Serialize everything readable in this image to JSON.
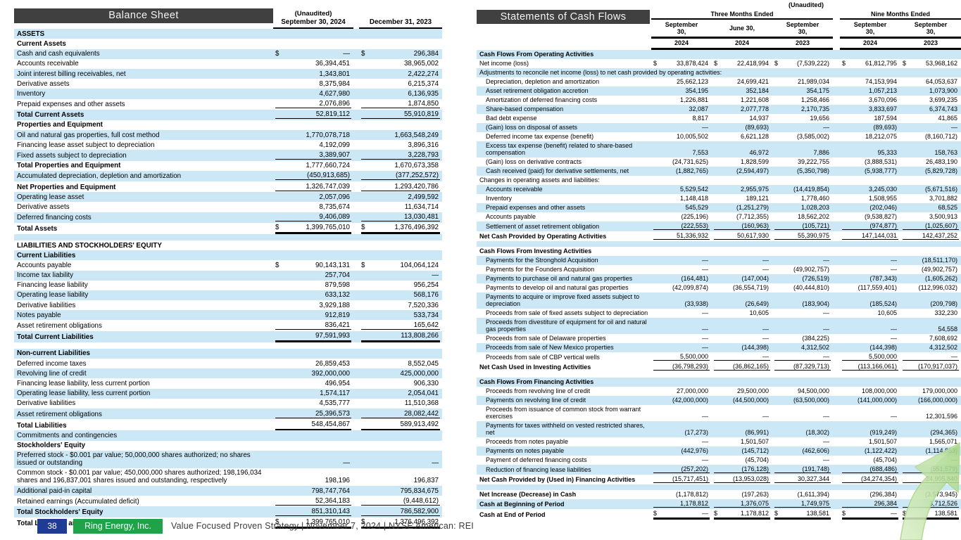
{
  "currency": "$",
  "colors": {
    "stripe": "#cce7f6",
    "header_bar": "#404040",
    "footer_page_bg": "#1e3c96",
    "footer_brand_bg": "#1fa349",
    "arrow_green_light": "#dcefca",
    "arrow_green_dark": "#a6d685"
  },
  "footer": {
    "page": "38",
    "company": "Ring Energy, Inc.",
    "tagline": "Value Focused Proven Strategy  | November 7, 2024 |  NYSE American: REI"
  },
  "balance_sheet": {
    "title": "Balance Sheet",
    "unaudited": "(Unaudited)",
    "col_headers": [
      "September 30, 2024",
      "December 31, 2023"
    ],
    "rows": [
      {
        "label": "ASSETS",
        "bold": 1,
        "stripe": 1
      },
      {
        "label": "Current Assets",
        "bold": 1
      },
      {
        "label": "Cash and cash equivalents",
        "values": [
          "—",
          "296,384"
        ],
        "dollar": 1,
        "stripe": 1
      },
      {
        "label": "Accounts receivable",
        "values": [
          "36,394,451",
          "38,965,002"
        ]
      },
      {
        "label": "Joint interest billing receivables, net",
        "values": [
          "1,343,801",
          "2,422,274"
        ],
        "stripe": 1
      },
      {
        "label": "Derivative assets",
        "values": [
          "8,375,984",
          "6,215,374"
        ]
      },
      {
        "label": "Inventory",
        "values": [
          "4,627,980",
          "6,136,935"
        ],
        "stripe": 1
      },
      {
        "label": "Prepaid expenses and other assets",
        "values": [
          "2,076,896",
          "1,874,850"
        ],
        "underline": "s"
      },
      {
        "label": "Total Current Assets",
        "values": [
          "52,819,112",
          "55,910,819"
        ],
        "bold": 1,
        "stripe": 1,
        "underline": "s"
      },
      {
        "label": "Properties and Equipment",
        "bold": 1
      },
      {
        "label": "Oil and natural gas properties, full cost method",
        "values": [
          "1,770,078,718",
          "1,663,548,249"
        ],
        "stripe": 1
      },
      {
        "label": "Financing lease asset subject to depreciation",
        "values": [
          "4,192,099",
          "3,896,316"
        ]
      },
      {
        "label": "Fixed assets subject to depreciation",
        "values": [
          "3,389,907",
          "3,228,793"
        ],
        "stripe": 1,
        "underline": "s"
      },
      {
        "label": "Total Properties and Equipment",
        "values": [
          "1,777,660,724",
          "1,670,673,358"
        ],
        "bold": 1
      },
      {
        "label": "Accumulated depreciation, depletion and amortization",
        "values": [
          "(450,913,685)",
          "(377,252,572)"
        ],
        "stripe": 1,
        "underline": "s"
      },
      {
        "label": "Net Properties and Equipment",
        "values": [
          "1,326,747,039",
          "1,293,420,786"
        ],
        "bold": 1,
        "underline": "s"
      },
      {
        "label": "Operating lease asset",
        "values": [
          "2,057,096",
          "2,499,592"
        ],
        "stripe": 1
      },
      {
        "label": "Derivative assets",
        "values": [
          "8,735,674",
          "11,634,714"
        ]
      },
      {
        "label": "Deferred financing costs",
        "values": [
          "9,406,089",
          "13,030,481"
        ],
        "stripe": 1,
        "underline": "s"
      },
      {
        "label": "Total Assets",
        "values": [
          "1,399,765,010",
          "1,376,496,392"
        ],
        "bold": 1,
        "dollar": 1,
        "underline": "d"
      },
      {
        "blank": 1,
        "stripe": 1
      },
      {
        "label": "LIABILITIES AND STOCKHOLDERS' EQUITY",
        "bold": 1
      },
      {
        "label": "Current Liabilities",
        "bold": 1,
        "stripe": 1
      },
      {
        "label": "Accounts payable",
        "values": [
          "90,143,131",
          "104,064,124"
        ],
        "dollar": 1
      },
      {
        "label": "Income tax liability",
        "values": [
          "257,704",
          "—"
        ],
        "stripe": 1
      },
      {
        "label": "Financing lease liability",
        "values": [
          "879,598",
          "956,254"
        ]
      },
      {
        "label": "Operating lease liability",
        "values": [
          "633,132",
          "568,176"
        ],
        "stripe": 1
      },
      {
        "label": "Derivative liabilities",
        "values": [
          "3,929,188",
          "7,520,336"
        ]
      },
      {
        "label": "Notes payable",
        "values": [
          "912,819",
          "533,734"
        ],
        "stripe": 1
      },
      {
        "label": "Asset retirement obligations",
        "values": [
          "836,421",
          "165,642"
        ],
        "underline": "s"
      },
      {
        "label": "Total Current Liabilities",
        "values": [
          "97,591,993",
          "113,808,266"
        ],
        "bold": 1,
        "stripe": 1,
        "underline": "d"
      },
      {
        "blank": 1
      },
      {
        "label": "Non-current Liabilities",
        "bold": 1,
        "stripe": 1
      },
      {
        "label": "Deferred income taxes",
        "values": [
          "26,859,453",
          "8,552,045"
        ]
      },
      {
        "label": "Revolving line of credit",
        "values": [
          "392,000,000",
          "425,000,000"
        ],
        "stripe": 1
      },
      {
        "label": "Financing lease liability, less current portion",
        "values": [
          "496,954",
          "906,330"
        ]
      },
      {
        "label": "Operating lease liability, less current portion",
        "values": [
          "1,574,117",
          "2,054,041"
        ],
        "stripe": 1
      },
      {
        "label": "Derivative liabilities",
        "values": [
          "4,535,777",
          "11,510,368"
        ]
      },
      {
        "label": "Asset retirement obligations",
        "values": [
          "25,396,573",
          "28,082,442"
        ],
        "stripe": 1,
        "underline": "s"
      },
      {
        "label": "Total Liabilities",
        "values": [
          "548,454,867",
          "589,913,492"
        ],
        "bold": 1,
        "underline": "d"
      },
      {
        "label": "Commitments and contingencies",
        "stripe": 1
      },
      {
        "label": "Stockholders' Equity",
        "bold": 1
      },
      {
        "label": "Preferred stock - $0.001 par value; 50,000,000 shares authorized; no shares issued or outstanding",
        "values": [
          "—",
          "—"
        ],
        "stripe": 1
      },
      {
        "label": "Common stock - $0.001 par value; 450,000,000 shares authorized; 198,196,034 shares and 196,837,001 shares issued and outstanding, respectively",
        "values": [
          "198,196",
          "196,837"
        ]
      },
      {
        "label": "Additional paid-in capital",
        "values": [
          "798,747,764",
          "795,834,675"
        ],
        "stripe": 1
      },
      {
        "label": "Retained earnings (Accumulated deficit)",
        "values": [
          "52,364,183",
          "(9,448,612)"
        ],
        "underline": "s"
      },
      {
        "label": "Total Stockholders' Equity",
        "values": [
          "851,310,143",
          "786,582,900"
        ],
        "bold": 1,
        "stripe": 1,
        "underline": "s"
      },
      {
        "label": "Total Liabilities and Stockholders' Equity",
        "values": [
          "1,399,765,010",
          "1,376,496,392"
        ],
        "bold": 1,
        "dollar": 1,
        "underline": "d"
      }
    ]
  },
  "cash_flows": {
    "title": "Statements of Cash Flows",
    "unaudited": "(Unaudited)",
    "group_headers": [
      "Three Months Ended",
      "Nine Months Ended"
    ],
    "col_dates": [
      [
        "September",
        "30,"
      ],
      [
        "June 30,"
      ],
      [
        "September",
        "30,"
      ],
      [
        "September",
        "30,"
      ],
      [
        "September",
        "30,"
      ]
    ],
    "col_years": [
      "2024",
      "2024",
      "2023",
      "2024",
      "2023"
    ],
    "rows": [
      {
        "label": "Cash Flows From Operating Activities",
        "bold": 1,
        "stripe": 1
      },
      {
        "label": "Net income (loss)",
        "values": [
          "33,878,424",
          "22,418,994",
          "(7,539,222)",
          "61,812,795",
          "53,968,162"
        ],
        "dollar": 1
      },
      {
        "label": "Adjustments to reconcile net income (loss) to net cash provided by operating activities:",
        "stripe": 1
      },
      {
        "label": "Depreciation, depletion and amortization",
        "indent": 1,
        "values": [
          "25,662,123",
          "24,699,421",
          "21,989,034",
          "74,153,994",
          "64,053,637"
        ]
      },
      {
        "label": "Asset retirement obligation accretion",
        "indent": 1,
        "values": [
          "354,195",
          "352,184",
          "354,175",
          "1,057,213",
          "1,073,900"
        ],
        "stripe": 1
      },
      {
        "label": "Amortization of deferred financing costs",
        "indent": 1,
        "values": [
          "1,226,881",
          "1,221,608",
          "1,258,466",
          "3,670,096",
          "3,699,235"
        ]
      },
      {
        "label": "Share-based compensation",
        "indent": 1,
        "values": [
          "32,087",
          "2,077,778",
          "2,170,735",
          "3,833,697",
          "6,374,743"
        ],
        "stripe": 1
      },
      {
        "label": "Bad debt expense",
        "indent": 1,
        "values": [
          "8,817",
          "14,937",
          "19,656",
          "187,594",
          "41,865"
        ]
      },
      {
        "label": "(Gain) loss on disposal of assets",
        "indent": 1,
        "values": [
          "—",
          "(89,693)",
          "—",
          "(89,693)",
          "—"
        ],
        "stripe": 1
      },
      {
        "label": "Deferred income tax expense (benefit)",
        "indent": 1,
        "values": [
          "10,005,502",
          "6,621,128",
          "(3,585,002)",
          "18,212,075",
          "(8,160,712)"
        ]
      },
      {
        "label": "Excess tax expense (benefit) related to share-based compensation",
        "indent": 1,
        "values": [
          "7,553",
          "46,972",
          "7,886",
          "95,333",
          "158,763"
        ],
        "stripe": 1
      },
      {
        "label": "(Gain) loss on derivative contracts",
        "indent": 1,
        "values": [
          "(24,731,625)",
          "1,828,599",
          "39,222,755",
          "(3,888,531)",
          "26,483,190"
        ]
      },
      {
        "label": "Cash received (paid) for derivative settlements, net",
        "indent": 1,
        "values": [
          "(1,882,765)",
          "(2,594,497)",
          "(5,350,798)",
          "(5,938,777)",
          "(5,829,728)"
        ],
        "stripe": 1
      },
      {
        "label": "Changes in operating assets and liabilities:"
      },
      {
        "label": "Accounts receivable",
        "indent": 1,
        "values": [
          "5,529,542",
          "2,955,975",
          "(14,419,854)",
          "3,245,030",
          "(5,671,516)"
        ],
        "stripe": 1
      },
      {
        "label": "Inventory",
        "indent": 1,
        "values": [
          "1,148,418",
          "189,121",
          "1,778,460",
          "1,508,955",
          "3,701,882"
        ]
      },
      {
        "label": "Prepaid expenses and other assets",
        "indent": 1,
        "values": [
          "545,529",
          "(1,251,279)",
          "1,028,203",
          "(202,046)",
          "68,525"
        ],
        "stripe": 1
      },
      {
        "label": "Accounts payable",
        "indent": 1,
        "values": [
          "(225,196)",
          "(7,712,355)",
          "18,562,202",
          "(9,538,827)",
          "3,500,913"
        ]
      },
      {
        "label": "Settlement of asset retirement obligation",
        "indent": 1,
        "values": [
          "(222,553)",
          "(160,963)",
          "(105,721)",
          "(974,877)",
          "(1,025,607)"
        ],
        "stripe": 1,
        "underline": "s"
      },
      {
        "label": "Net Cash Provided by Operating Activities",
        "bold": 1,
        "values": [
          "51,336,932",
          "50,617,930",
          "55,390,975",
          "147,144,031",
          "142,437,252"
        ],
        "underline": "s"
      },
      {
        "blank": 1,
        "stripe": 1
      },
      {
        "label": "Cash Flows From Investing Activities",
        "bold": 1
      },
      {
        "label": "Payments for the Stronghold Acquisition",
        "indent": 1,
        "values": [
          "—",
          "—",
          "—",
          "—",
          "(18,511,170)"
        ],
        "stripe": 1
      },
      {
        "label": "Payments for the Founders Acquisition",
        "indent": 1,
        "values": [
          "—",
          "—",
          "(49,902,757)",
          "—",
          "(49,902,757)"
        ]
      },
      {
        "label": "Payments to purchase oil and natural gas properties",
        "indent": 1,
        "values": [
          "(164,481)",
          "(147,004)",
          "(726,519)",
          "(787,343)",
          "(1,605,262)"
        ],
        "stripe": 1
      },
      {
        "label": "Payments to develop oil and natural gas properties",
        "indent": 1,
        "values": [
          "(42,099,874)",
          "(36,554,719)",
          "(40,444,810)",
          "(117,559,401)",
          "(112,996,032)"
        ]
      },
      {
        "label": "Payments to acquire or improve fixed assets subject to depreciation",
        "indent": 1,
        "values": [
          "(33,938)",
          "(26,649)",
          "(183,904)",
          "(185,524)",
          "(209,798)"
        ],
        "stripe": 1
      },
      {
        "label": "Proceeds from sale of fixed assets subject to depreciation",
        "indent": 1,
        "values": [
          "—",
          "10,605",
          "—",
          "10,605",
          "332,230"
        ]
      },
      {
        "label": "Proceeds from divestiture of equipment for oil and natural gas properties",
        "indent": 1,
        "values": [
          "—",
          "—",
          "—",
          "—",
          "54,558"
        ],
        "stripe": 1
      },
      {
        "label": "Proceeds from sale of Delaware properties",
        "indent": 1,
        "values": [
          "—",
          "—",
          "(384,225)",
          "—",
          "7,608,692"
        ]
      },
      {
        "label": "Proceeds from sale of New Mexico properties",
        "indent": 1,
        "values": [
          "—",
          "(144,398)",
          "4,312,502",
          "(144,398)",
          "4,312,502"
        ],
        "stripe": 1
      },
      {
        "label": "Proceeds from sale of CBP vertical wells",
        "indent": 1,
        "values": [
          "5,500,000",
          "—",
          "—",
          "5,500,000",
          "—"
        ],
        "underline": "s"
      },
      {
        "label": "Net Cash Used in Investing Activities",
        "bold": 1,
        "values": [
          "(36,798,293)",
          "(36,862,165)",
          "(87,329,713)",
          "(113,166,061)",
          "(170,917,037)"
        ],
        "underline": "s"
      },
      {
        "blank": 1
      },
      {
        "label": "Cash Flows From Financing Activities",
        "bold": 1,
        "stripe": 1
      },
      {
        "label": "Proceeds from revolving line of credit",
        "indent": 1,
        "values": [
          "27,000,000",
          "29,500,000",
          "94,500,000",
          "108,000,000",
          "179,000,000"
        ]
      },
      {
        "label": "Payments on revolving line of credit",
        "indent": 1,
        "values": [
          "(42,000,000)",
          "(44,500,000)",
          "(63,500,000)",
          "(141,000,000)",
          "(166,000,000)"
        ],
        "stripe": 1
      },
      {
        "label": "Proceeds from issuance of common stock from warrant exercises",
        "indent": 1,
        "values": [
          "—",
          "—",
          "—",
          "—",
          "12,301,596"
        ]
      },
      {
        "label": "Payments for taxes withheld on vested restricted shares, net",
        "indent": 1,
        "values": [
          "(17,273)",
          "(86,991)",
          "(18,302)",
          "(919,249)",
          "(294,365)"
        ],
        "stripe": 1
      },
      {
        "label": "Proceeds from notes payable",
        "indent": 1,
        "values": [
          "—",
          "1,501,507",
          "—",
          "1,501,507",
          "1,565,071"
        ]
      },
      {
        "label": "Payments on notes payable",
        "indent": 1,
        "values": [
          "(442,976)",
          "(145,712)",
          "(462,606)",
          "(1,122,422)",
          "(1,114,883)"
        ],
        "stripe": 1
      },
      {
        "label": "Payment of deferred financing costs",
        "indent": 1,
        "values": [
          "—",
          "(45,704)",
          "—",
          "(45,704)",
          "—"
        ]
      },
      {
        "label": "Reduction of financing lease liabilities",
        "indent": 1,
        "values": [
          "(257,202)",
          "(176,128)",
          "(191,748)",
          "(688,486)",
          "(551,579)"
        ],
        "stripe": 1,
        "underline": "s"
      },
      {
        "label": "Net Cash Provided by (Used in) Financing Activities",
        "bold": 1,
        "values": [
          "(15,717,451)",
          "(13,953,028)",
          "30,327,344",
          "(34,274,354)",
          "24,905,840"
        ],
        "underline": "s"
      },
      {
        "blank": 1,
        "stripe": 1
      },
      {
        "label": "Net Increase (Decrease) in Cash",
        "bold": 1,
        "values": [
          "(1,178,812)",
          "(197,263)",
          "(1,611,394)",
          "(296,384)",
          "(3,573,945)"
        ]
      },
      {
        "label": "Cash at Beginning of Period",
        "bold": 1,
        "values": [
          "1,178,812",
          "1,376,075",
          "1,749,975",
          "296,384",
          "3,712,526"
        ],
        "stripe": 1,
        "underline": "s"
      },
      {
        "label": "Cash at End of Period",
        "bold": 1,
        "values": [
          "—",
          "1,178,812",
          "138,581",
          "—",
          "138,581"
        ],
        "dollar": 1,
        "underline": "d"
      }
    ]
  }
}
